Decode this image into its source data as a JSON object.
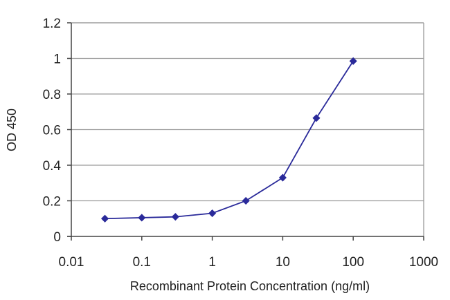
{
  "chart_data": {
    "type": "scatter",
    "title": "",
    "xlabel": "Recombinant Protein Concentration (ng/ml)",
    "ylabel": "OD 450",
    "x_scale": "log",
    "xlim": [
      0.01,
      1000
    ],
    "ylim": [
      0,
      1.2
    ],
    "x_ticks": [
      0.01,
      0.1,
      1,
      10,
      100,
      1000
    ],
    "x_tick_labels": [
      "0.01",
      "0.1",
      "1",
      "10",
      "100",
      "1000"
    ],
    "y_ticks": [
      0,
      0.2,
      0.4,
      0.6,
      0.8,
      1,
      1.2
    ],
    "y_tick_labels": [
      "0",
      "0.2",
      "0.4",
      "0.6",
      "0.8",
      "1",
      "1.2"
    ],
    "grid": "horizontal",
    "legend": "none",
    "series": [
      {
        "x": [
          0.03,
          0.1,
          0.3,
          1,
          3,
          10,
          30,
          100
        ],
        "y": [
          0.1,
          0.105,
          0.11,
          0.13,
          0.2,
          0.33,
          0.665,
          0.985
        ],
        "color": "#2a2a9a",
        "marker": "diamond",
        "line": "solid"
      }
    ]
  }
}
